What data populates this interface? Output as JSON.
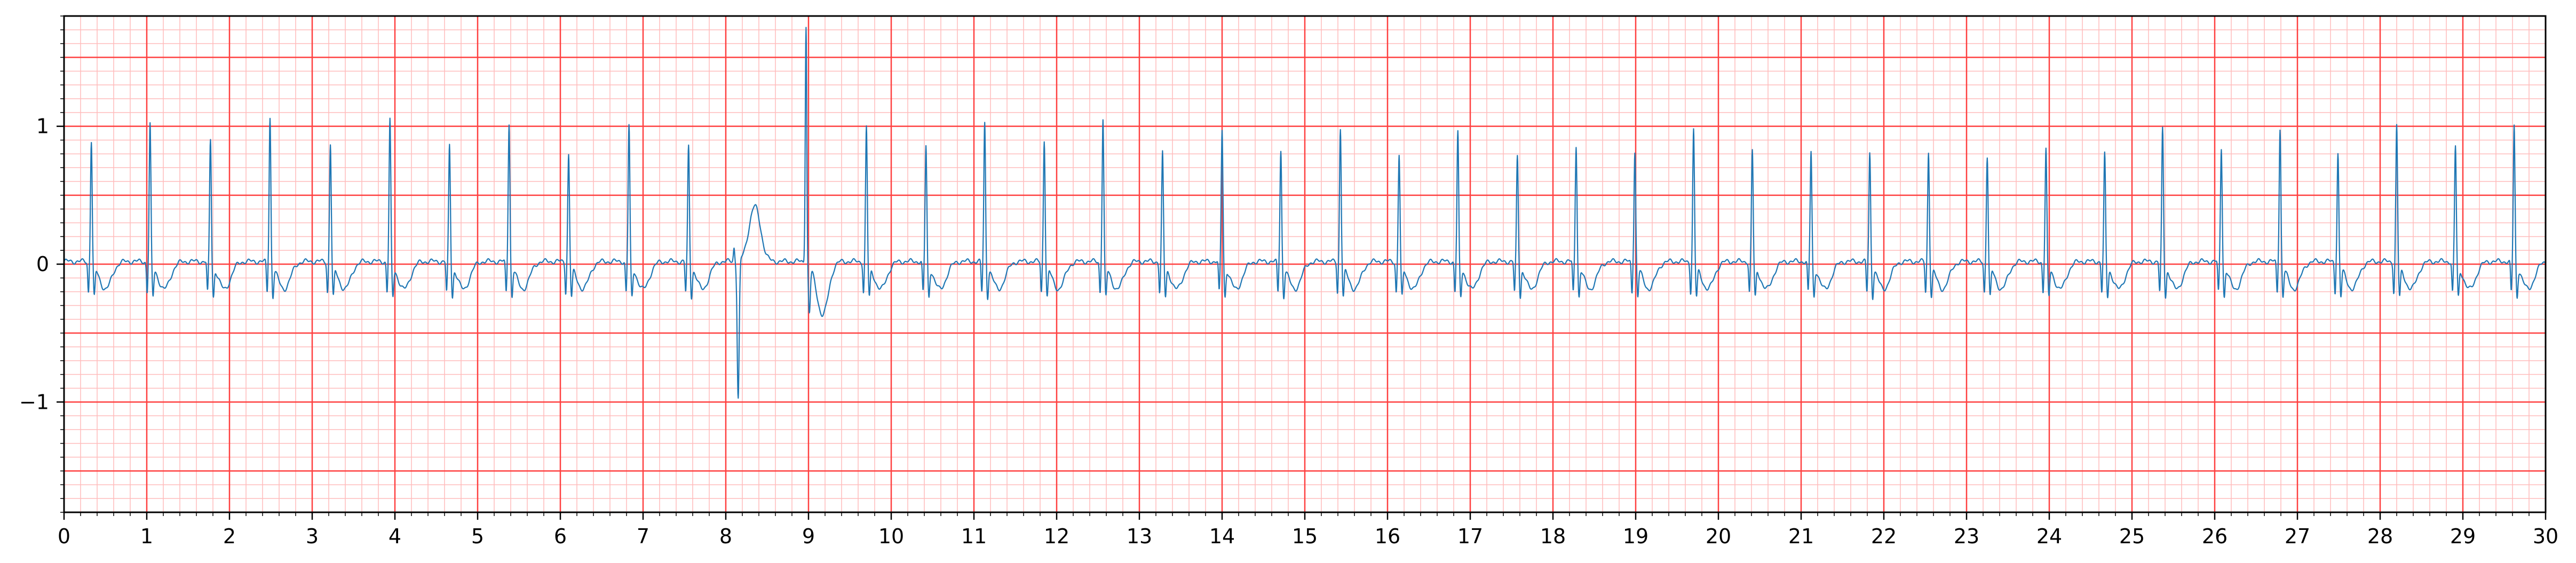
{
  "chart_data": {
    "type": "line",
    "title": "",
    "xlabel": "",
    "ylabel": "",
    "xlim": [
      0,
      30
    ],
    "ylim": [
      -1.8,
      1.8
    ],
    "grid": "on",
    "legend": "none",
    "x_ticks": [
      0,
      1,
      2,
      3,
      4,
      5,
      6,
      7,
      8,
      9,
      10,
      11,
      12,
      13,
      14,
      15,
      16,
      17,
      18,
      19,
      20,
      21,
      22,
      23,
      24,
      25,
      26,
      27,
      28,
      29,
      30
    ],
    "x_tick_labels": [
      "0",
      "1",
      "2",
      "3",
      "4",
      "5",
      "6",
      "7",
      "8",
      "9",
      "10",
      "11",
      "12",
      "13",
      "14",
      "15",
      "16",
      "17",
      "18",
      "19",
      "20",
      "21",
      "22",
      "23",
      "24",
      "25",
      "26",
      "27",
      "28",
      "29",
      "30"
    ],
    "y_ticks": [
      -1,
      0,
      1
    ],
    "y_tick_labels": [
      "−1",
      "0",
      "1"
    ],
    "major_grid_x_step": 1,
    "minor_grid_x_step": 0.2,
    "major_grid_y_step": 0.5,
    "minor_grid_y_step": 0.1,
    "major_grid_color": "#ff4040",
    "minor_grid_color": "#ffbcbc",
    "series": [
      {
        "color": "#1f77b4",
        "baseline": 0.02,
        "beats": [
          {
            "t": 0.33,
            "r": 0.86
          },
          {
            "t": 1.04,
            "r": 0.98
          },
          {
            "t": 1.77,
            "r": 0.87
          },
          {
            "t": 2.49,
            "r": 1.03
          },
          {
            "t": 3.22,
            "r": 0.84
          },
          {
            "t": 3.94,
            "r": 1.01
          },
          {
            "t": 4.66,
            "r": 0.83
          },
          {
            "t": 5.38,
            "r": 0.99
          },
          {
            "t": 6.1,
            "r": 0.76
          },
          {
            "t": 6.83,
            "r": 0.97
          },
          {
            "t": 7.55,
            "r": 0.82
          },
          {
            "t": 9.7,
            "r": 0.96
          },
          {
            "t": 10.42,
            "r": 0.82
          },
          {
            "t": 11.13,
            "r": 0.99
          },
          {
            "t": 11.85,
            "r": 0.87
          },
          {
            "t": 12.56,
            "r": 1.02
          },
          {
            "t": 13.28,
            "r": 0.77
          },
          {
            "t": 14.0,
            "r": 0.94
          },
          {
            "t": 14.71,
            "r": 0.79
          },
          {
            "t": 15.43,
            "r": 0.95
          },
          {
            "t": 16.14,
            "r": 0.76
          },
          {
            "t": 16.85,
            "r": 0.92
          },
          {
            "t": 17.57,
            "r": 0.75
          },
          {
            "t": 18.28,
            "r": 0.83
          },
          {
            "t": 18.99,
            "r": 0.78
          },
          {
            "t": 19.7,
            "r": 0.94
          },
          {
            "t": 20.41,
            "r": 0.79
          },
          {
            "t": 21.12,
            "r": 0.78
          },
          {
            "t": 21.83,
            "r": 0.77
          },
          {
            "t": 22.54,
            "r": 0.78
          },
          {
            "t": 23.25,
            "r": 0.75
          },
          {
            "t": 23.96,
            "r": 0.8
          },
          {
            "t": 24.67,
            "r": 0.76
          },
          {
            "t": 25.37,
            "r": 0.95
          },
          {
            "t": 26.08,
            "r": 0.81
          },
          {
            "t": 26.79,
            "r": 0.95
          },
          {
            "t": 27.49,
            "r": 0.77
          },
          {
            "t": 28.2,
            "r": 0.97
          },
          {
            "t": 28.91,
            "r": 0.82
          },
          {
            "t": 29.62,
            "r": 0.97
          }
        ],
        "ectopic_events": [
          {
            "t": 8.1,
            "y": 0.12
          },
          {
            "t": 8.15,
            "y": -0.98
          },
          {
            "t": 8.35,
            "y": 0.42
          },
          {
            "t": 8.97,
            "y": 1.74
          },
          {
            "t": 9.17,
            "y": -0.72
          }
        ]
      }
    ]
  }
}
